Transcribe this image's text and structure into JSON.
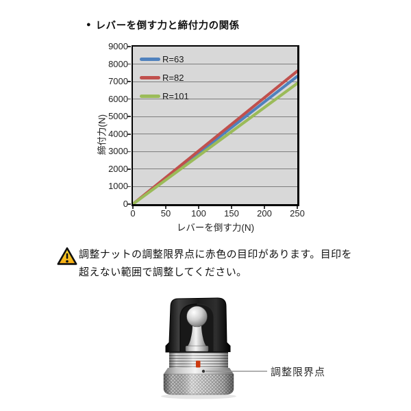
{
  "title": {
    "bullet": "●",
    "text": "レバーを倒す力と締付力の関係"
  },
  "chart_data": {
    "type": "line",
    "title": "レバーを倒す力と締付力の関係",
    "xlabel": "レバーを倒す力(N)",
    "ylabel": "締付力(N)",
    "xlim": [
      0,
      250
    ],
    "ylim": [
      0,
      9000
    ],
    "xticks": [
      0,
      50,
      100,
      150,
      200,
      250
    ],
    "yticks": [
      0,
      1000,
      2000,
      3000,
      4000,
      5000,
      6000,
      7000,
      8000,
      9000
    ],
    "grid": "horizontal",
    "legend_position": "top-left-inside",
    "plot_bg": "#d8d8d8",
    "grid_color": "#7d7d7d",
    "x": [
      0,
      250
    ],
    "series": [
      {
        "name": "R=63",
        "color": "#4f81bd",
        "values": [
          0,
          7300
        ]
      },
      {
        "name": "R=82",
        "color": "#c0504d",
        "values": [
          0,
          7600
        ]
      },
      {
        "name": "R=101",
        "color": "#9bbb59",
        "values": [
          0,
          6900
        ]
      }
    ]
  },
  "warning": {
    "line1": "調整ナットの調整限界点に赤色の目印があります。目印を",
    "line2": "超えない範囲で調整してください。",
    "icon_fill_top": "#ffdf2e",
    "icon_fill_bottom": "#f5a912",
    "icon_border": "#111111"
  },
  "figure": {
    "label": "調整限界点",
    "mark_color": "#cc3a10",
    "callout_line_color": "#959595"
  }
}
